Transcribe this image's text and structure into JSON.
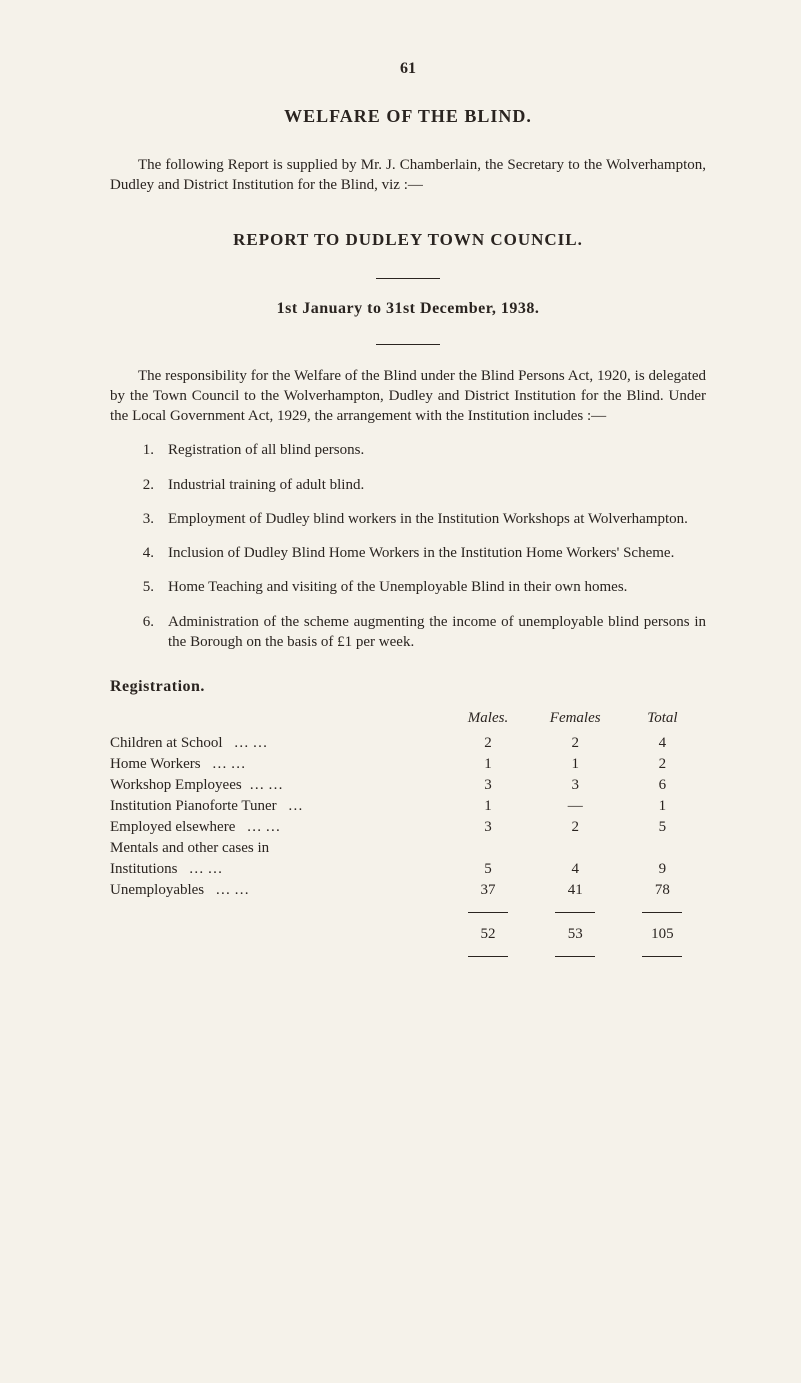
{
  "page_number": "61",
  "title": "WELFARE OF THE BLIND.",
  "intro": "The following Report is supplied by Mr. J. Chamberlain, the Secretary to the Wolverhampton, Dudley and District Institution for the Blind, viz :—",
  "subtitle": "REPORT TO DUDLEY TOWN COUNCIL.",
  "date_line": "1st January to 31st December, 1938.",
  "body_para": "The responsibility for the Welfare of the Blind under the Blind Persons Act, 1920, is delegated by the Town Council to the Wolverhampton, Dudley and District Institution for the Blind. Under the Local Government Act, 1929, the arrangement with the Institution includes :—",
  "items": [
    {
      "num": "1.",
      "text": "Registration of all blind persons."
    },
    {
      "num": "2.",
      "text": "Industrial training of adult blind."
    },
    {
      "num": "3.",
      "text": "Employment of Dudley blind workers in the Institution Workshops at Wolverhampton."
    },
    {
      "num": "4.",
      "text": "Inclusion of Dudley Blind Home Workers in the Institution Home Workers' Scheme."
    },
    {
      "num": "5.",
      "text": "Home Teaching and visiting of the Unemployable Blind in their own homes."
    },
    {
      "num": "6.",
      "text": "Administration of the scheme augmenting the income of unemployable blind persons in the Borough on the basis of £1 per week."
    }
  ],
  "registration_heading": "Registration.",
  "table": {
    "headers": {
      "males": "Males.",
      "females": "Females",
      "total": "Total"
    },
    "rows": [
      {
        "label": "Children at School",
        "dots": "…        …",
        "males": "2",
        "females": "2",
        "total": "4"
      },
      {
        "label": "Home Workers",
        "dots": "…        …",
        "males": "1",
        "females": "1",
        "total": "2"
      },
      {
        "label": "Workshop Employees",
        "dots": "…        …",
        "males": "3",
        "females": "3",
        "total": "6"
      },
      {
        "label": "Institution Pianoforte Tuner",
        "dots": "…",
        "males": "1",
        "females": "—",
        "total": "1"
      },
      {
        "label": "Employed elsewhere",
        "dots": "…        …",
        "males": "3",
        "females": "2",
        "total": "5"
      },
      {
        "label": "Mentals and other cases in",
        "dots": "",
        "males": "",
        "females": "",
        "total": ""
      },
      {
        "label": "Institutions",
        "dots": "…        …",
        "males": "5",
        "females": "4",
        "total": "9",
        "indent": true
      },
      {
        "label": "Unemployables",
        "dots": "…        …",
        "males": "37",
        "females": "41",
        "total": "78"
      }
    ],
    "totals": {
      "males": "52",
      "females": "53",
      "total": "105"
    }
  }
}
